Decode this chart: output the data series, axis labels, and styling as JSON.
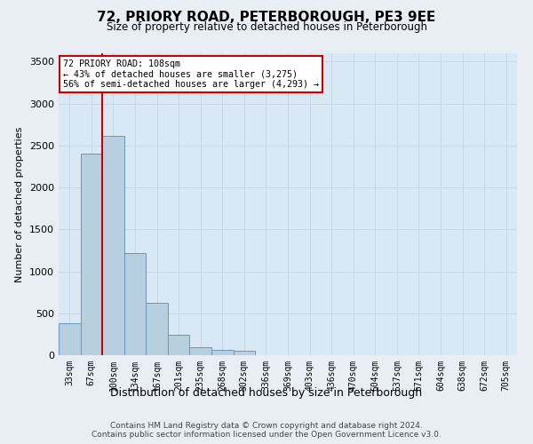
{
  "title": "72, PRIORY ROAD, PETERBOROUGH, PE3 9EE",
  "subtitle": "Size of property relative to detached houses in Peterborough",
  "xlabel": "Distribution of detached houses by size in Peterborough",
  "ylabel": "Number of detached properties",
  "footnote1": "Contains HM Land Registry data © Crown copyright and database right 2024.",
  "footnote2": "Contains public sector information licensed under the Open Government Licence v3.0.",
  "categories": [
    "33sqm",
    "67sqm",
    "100sqm",
    "134sqm",
    "167sqm",
    "201sqm",
    "235sqm",
    "268sqm",
    "302sqm",
    "336sqm",
    "369sqm",
    "403sqm",
    "436sqm",
    "470sqm",
    "504sqm",
    "537sqm",
    "571sqm",
    "604sqm",
    "638sqm",
    "672sqm",
    "705sqm"
  ],
  "values": [
    380,
    2400,
    2610,
    1220,
    630,
    240,
    100,
    60,
    55,
    0,
    0,
    0,
    0,
    0,
    0,
    0,
    0,
    0,
    0,
    0,
    0
  ],
  "bar_color": "#b8cfdf",
  "bar_edge_color": "#6699bb",
  "vline_x_index": 2,
  "annotation_line1": "72 PRIORY ROAD: 108sqm",
  "annotation_line2": "← 43% of detached houses are smaller (3,275)",
  "annotation_line3": "56% of semi-detached houses are larger (4,293) →",
  "ylim_max": 3600,
  "yticks": [
    0,
    500,
    1000,
    1500,
    2000,
    2500,
    3000,
    3500
  ],
  "vline_color": "#cc0000",
  "annotation_box_edge_color": "#cc0000",
  "grid_color": "#c8d8e8",
  "background_color": "#e8eef4",
  "plot_background": "#d8e8f4"
}
